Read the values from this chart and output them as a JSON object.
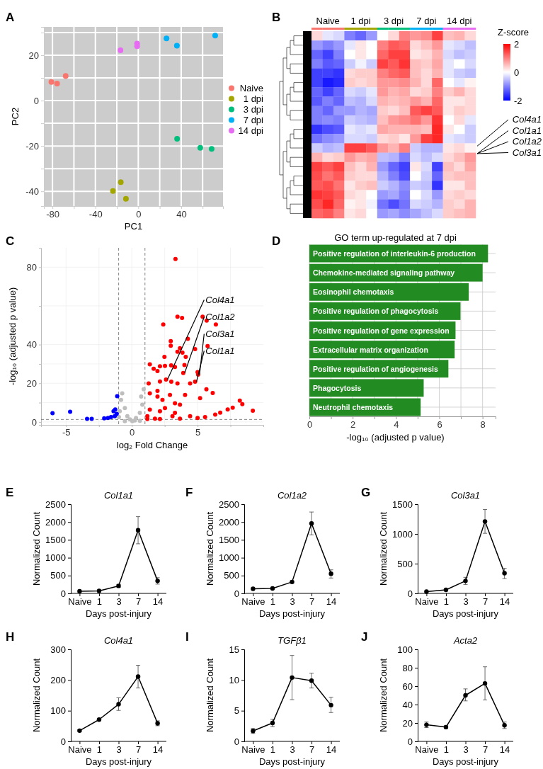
{
  "chart_data": [
    {
      "type": "scatter",
      "xlabel": "PC1",
      "ylabel": "PC2",
      "annotations": [
        "A"
      ],
      "xlim": [
        -88,
        79
      ],
      "ylim": [
        -46.5,
        32.5
      ],
      "xticks": [
        -80,
        {
          "value": -60,
          "label": null
        },
        -40,
        {
          "value": -20,
          "label": null
        },
        0,
        {
          "value": 20,
          "label": null
        },
        40,
        {
          "value": 60,
          "label": null
        }
      ],
      "yticks": [
        -40,
        {
          "value": -30,
          "label": null
        },
        -20,
        {
          "value": -10,
          "label": null
        },
        0,
        {
          "value": 10,
          "label": null
        },
        20,
        {
          "value": 30,
          "label": null
        }
      ],
      "grid": true,
      "legend": "right",
      "marker": "circle",
      "series": [
        {
          "name": "Naive",
          "color": "#f8766d",
          "x": [
            -81,
            -75.7,
            -67.7
          ],
          "values": [
            8.2,
            7.5,
            10.9
          ]
        },
        {
          "name": "1 dpi",
          "color": "#a3a500",
          "x": [
            -23.6,
            -16.3,
            -11.5
          ],
          "values": [
            -39.9,
            -36,
            -43.3
          ]
        },
        {
          "name": "3 dpi",
          "color": "#00bf7d",
          "x": [
            36.2,
            57.8,
            68.4
          ],
          "values": [
            -16.8,
            -20.8,
            -21.3
          ]
        },
        {
          "name": "7 dpi",
          "color": "#00b0f6",
          "x": [
            26.3,
            36,
            71.7
          ],
          "values": [
            27.4,
            24.2,
            28.7
          ]
        },
        {
          "name": "14 dpi",
          "color": "#e76bf3",
          "x": [
            -16.6,
            -1.1,
            -1.1
          ],
          "values": [
            22.2,
            25.2,
            24
          ]
        }
      ]
    },
    {
      "type": "heatmap",
      "annotations": [
        "B",
        "Col4a1",
        "Col1a1",
        "Col1a2",
        "Col3a1"
      ],
      "clabel": "Z-score",
      "clim": [
        -2,
        2
      ],
      "cticks": [
        -2,
        0,
        2
      ],
      "categories": [
        null,
        "Naive",
        null,
        null,
        "1 dpi",
        null,
        null,
        "3 dpi",
        null,
        null,
        "7 dpi",
        null,
        null,
        "14 dpi",
        null
      ],
      "y_categories": [
        null,
        null,
        null,
        null,
        null,
        null,
        null,
        null,
        null,
        null,
        null,
        null,
        null,
        null,
        null,
        null,
        null,
        null,
        null,
        null
      ],
      "cells": [
        [
          0.3,
          -0.2,
          -0.3,
          -1,
          -1.2,
          -0.8,
          0,
          0.3,
          1,
          0.8,
          0.9,
          1.5,
          0.5,
          0.6,
          0.3
        ],
        [
          -0.8,
          -1,
          -0.8,
          -0.2,
          0.2,
          0,
          1,
          1.3,
          1.2,
          0.3,
          0.5,
          0.8,
          -0.2,
          -0.3,
          -0.5
        ],
        [
          -1.2,
          -1.5,
          -1,
          0,
          0.2,
          0,
          1.2,
          1.5,
          1.5,
          0.2,
          0.3,
          0.6,
          -0.3,
          -0.5,
          -0.4
        ],
        [
          -1,
          -1.3,
          -1.2,
          -0.4,
          -0.1,
          -0.4,
          1.5,
          1.3,
          1.6,
          0.5,
          0.4,
          0.7,
          -0.2,
          0,
          -0.3
        ],
        [
          -1.5,
          -1.5,
          -1.6,
          0.3,
          0.4,
          0.4,
          1,
          1.2,
          1.3,
          0.5,
          0.3,
          0.6,
          -0.2,
          -0.4,
          -0.5
        ],
        [
          -1.5,
          -1.8,
          -1.7,
          0.4,
          0.3,
          0.4,
          0.8,
          0.8,
          0.9,
          0.6,
          0.3,
          1.2,
          0,
          -0.2,
          0.1
        ],
        [
          -1.2,
          -1.5,
          -1.2,
          -0.3,
          -0.4,
          -0.2,
          0.8,
          0.6,
          0.7,
          0.3,
          0.4,
          1,
          0.4,
          0.6,
          0.3
        ],
        [
          -1.3,
          -1,
          -1.2,
          -0.5,
          -0.6,
          -0.3,
          0.6,
          0.5,
          0.6,
          0.8,
          0.6,
          1.2,
          0.2,
          0.2,
          0.3
        ],
        [
          -1,
          -1.2,
          -0.8,
          -0.8,
          -0.6,
          -0.7,
          0.4,
          0.3,
          0.5,
          1.3,
          1.5,
          1.3,
          0.2,
          0.4,
          0.3
        ],
        [
          -1,
          -0.9,
          -1,
          -0.4,
          -0.5,
          -0.6,
          0.5,
          0.8,
          0.9,
          1.1,
          0.8,
          1.6,
          0,
          0.3,
          -0.2
        ],
        [
          -1.6,
          -1.4,
          -1.3,
          -0.2,
          -0.3,
          -0.2,
          0.7,
          0.6,
          0.6,
          0.6,
          0.5,
          1.7,
          0.2,
          0,
          -0.4
        ],
        [
          -1.1,
          -0.9,
          -0.8,
          -0.3,
          -0.3,
          -0.4,
          0.3,
          0.4,
          0.2,
          0.8,
          1.5,
          1.7,
          -0.2,
          -0.3,
          -0.4
        ],
        [
          -0.4,
          -0.6,
          -0.5,
          1.5,
          1.5,
          1.3,
          0.8,
          0.6,
          1,
          -0.4,
          -0.6,
          -0.6,
          0.2,
          0.3,
          0.1
        ],
        [
          0.6,
          0.3,
          0.4,
          0.8,
          0.6,
          0.7,
          -0.5,
          -0.6,
          -1,
          -0.3,
          -0.5,
          -0.3,
          0.3,
          0.5,
          0.8
        ],
        [
          1.5,
          1.3,
          1.5,
          0.5,
          0.3,
          0.6,
          -0.8,
          -1.2,
          -1.5,
          0.2,
          -0.3,
          -1.5,
          0.5,
          0.3,
          0.7
        ],
        [
          1.4,
          1.1,
          1.3,
          0.4,
          0.3,
          0.3,
          -0.6,
          -1,
          -1.4,
          0,
          -0.4,
          -1.2,
          0.4,
          0.5,
          0.5
        ],
        [
          1.3,
          1.4,
          1.1,
          0.2,
          0.4,
          0.5,
          -0.4,
          -0.6,
          -0.9,
          -0.4,
          -0.5,
          -1.6,
          0.2,
          0.2,
          0.5
        ],
        [
          1.6,
          1.5,
          1.3,
          0.3,
          0.2,
          0,
          -0.8,
          -0.7,
          -1,
          0,
          -0.3,
          -0.8,
          0.3,
          0.4,
          0.3
        ],
        [
          1.4,
          1.7,
          1.2,
          0.1,
          0.2,
          -0.1,
          -1.1,
          -1.4,
          -1.1,
          -0.3,
          -0.4,
          -0.6,
          0.4,
          0.3,
          0.6
        ],
        [
          1.2,
          1.3,
          1,
          0.2,
          0.3,
          0,
          -0.8,
          -0.7,
          -0.9,
          -0.7,
          -0.5,
          -0.3,
          0.4,
          0.5,
          0.6
        ]
      ]
    },
    {
      "type": "scatter",
      "xlabel": "log₂ Fold Change",
      "ylabel": "-log₁₀ (adjusted p value)",
      "xlim": [
        -6.9,
        10
      ],
      "ylim": [
        -1.5,
        90
      ],
      "annotations": [
        "C",
        {
          "text": "Col4a1",
          "x": 2.6,
          "y": 21.9
        },
        {
          "text": "Col1a2",
          "x": 3.91,
          "y": 25.3
        },
        {
          "text": "Col3a1",
          "x": 5.04,
          "y": 24.5
        },
        {
          "text": "Col1a1",
          "x": 4.81,
          "y": 20.8
        }
      ],
      "xticks": [
        -5,
        {
          "value": -2.5,
          "label": null
        },
        0,
        {
          "value": 2.5,
          "label": null
        },
        5,
        {
          "value": 7.5,
          "label": null
        }
      ],
      "yticks": [
        0,
        {
          "value": 10,
          "label": null
        },
        20,
        {
          "value": 30,
          "label": null
        },
        40,
        {
          "value": 60,
          "label": null
        },
        80
      ],
      "grid": true,
      "marker": "circle",
      "ref_lines": [
        {
          "axis": "x",
          "value": -1,
          "color": "#666666",
          "line_style": "dashed"
        },
        {
          "axis": "x",
          "value": 1,
          "color": "#666666",
          "line_style": "dashed"
        },
        {
          "axis": "y",
          "value": 1.3,
          "color": "#666666",
          "line_style": "dashed"
        }
      ],
      "series": [
        {
          "color": "#bebebe",
          "x": [
            -0.73,
            -0.82,
            -0.53,
            -0.34,
            -0.15,
            0.32,
            0.61,
            0.8,
            0.9,
            0.71,
            -0.92,
            0.23,
            0.04,
            -0.53,
            -0.98,
            0.61
          ],
          "values": [
            14.8,
            11.4,
            7.2,
            3,
            1.3,
            2.1,
            4.7,
            8.9,
            16.9,
            13.1,
            5.5,
            0.8,
            0.4,
            0.4,
            2.5,
            0.6
          ]
        },
        {
          "color": "#0000ff",
          "x": [
            -6.03,
            -4.69,
            -3.4,
            -3.05,
            -2.1,
            -1.81,
            -1.39,
            -1.26,
            -1.11,
            -1.3,
            -1.58,
            -1.15
          ],
          "values": [
            4.5,
            5.3,
            1.6,
            1.6,
            1.9,
            2.1,
            5.5,
            6.5,
            13.3,
            3,
            2.5,
            4.2
          ]
        },
        {
          "color": "#ff0000",
          "x": [
            3.32,
            3.47,
            3.82,
            5.38,
            5.69,
            6.39,
            2.39,
            2.96,
            2.96,
            4.26,
            5.76,
            4.81,
            3.66,
            3.47,
            3.85,
            2.48,
            4.1,
            1.37,
            2.14,
            2.52,
            2.99,
            3.28,
            4.0,
            5.0,
            1.95,
            1.66,
            2.6,
            3.91,
            5.04,
            4.81,
            2.14,
            3.0,
            3.47,
            4.43,
            5.67,
            6.15,
            1.28,
            1.95,
            2.9,
            4.05,
            5.19,
            2.33,
            3.66,
            8.21,
            8.4,
            9.2,
            7.67,
            7.29,
            6.72,
            5.57,
            4.43,
            3.28,
            2.14,
            1.37,
            1.18,
            1.76,
            2.52,
            3.28,
            1.95,
            1.37,
            1.18,
            2.14,
            3.66,
            5.0,
            6.34,
            3.09
          ],
          "values": [
            84.2,
            54.4,
            53.8,
            54.4,
            52.4,
            50.4,
            50.4,
            41.8,
            39.4,
            43,
            39.2,
            37.7,
            38.1,
            36.3,
            35.8,
            33.6,
            33.6,
            29.8,
            28.8,
            29,
            29.2,
            28.4,
            29.4,
            25.8,
            26.3,
            27.5,
            21.9,
            25.3,
            24.5,
            20.8,
            20.9,
            20.8,
            19.9,
            19.9,
            16.9,
            15,
            19.9,
            16.1,
            14,
            14,
            12.3,
            11.4,
            8.9,
            11,
            9.2,
            5.8,
            7.4,
            6.5,
            4.8,
            2.5,
            3,
            4.7,
            5.5,
            6.4,
            3,
            1.7,
            7.2,
            9.7,
            13.1,
            14.8,
            1.5,
            1.5,
            1.7,
            2.1,
            3.8,
            3
          ]
        }
      ]
    },
    {
      "type": "bar",
      "orientation": "horizontal",
      "title": "GO term up-regulated at 7 dpi",
      "xlabel": "-log₁₀ (adjusted p value)",
      "annotations": [
        "D"
      ],
      "color": "#228b22",
      "categories": [
        "Positive regulation of interleukin-6 production",
        "Chemokine-mediated signaling pathway",
        "Eosinophil chemotaxis",
        "Positive regulation of phagocytosis",
        "Positive regulation of gene expression",
        "Extracellular matrix organization",
        "Positive regulation of angiogenesis",
        "Phagocytosis",
        "Neutrophil chemotaxis"
      ],
      "values": [
        8.25,
        8.0,
        7.36,
        6.98,
        6.75,
        6.71,
        6.42,
        5.28,
        5.14
      ],
      "xlim": [
        0,
        8.6
      ],
      "xticks": [
        0,
        {
          "value": 1,
          "label": null
        },
        2,
        {
          "value": 3,
          "label": null
        },
        4,
        {
          "value": 5,
          "label": null
        },
        6,
        {
          "value": 7,
          "label": null
        },
        8
      ],
      "grid": true
    },
    {
      "type": "line",
      "title": "Col1a1",
      "annotations": [
        "E"
      ],
      "xlabel": "Days post-injury",
      "ylabel": "Normalized Count",
      "categories": [
        "Naive",
        "1",
        "3",
        "7",
        "14"
      ],
      "color": "#000000",
      "marker": "circle",
      "line_style": "solid",
      "values": [
        60,
        70,
        210,
        1770,
        350
      ],
      "errors": [
        null,
        null,
        [
          170,
          250
        ],
        [
          1390,
          2150
        ],
        [
          260,
          440
        ]
      ],
      "ylim": [
        0,
        2500
      ],
      "yticks": [
        0,
        500,
        1000,
        1500,
        2000,
        2500
      ]
    },
    {
      "type": "line",
      "title": "Col1a2",
      "annotations": [
        "F"
      ],
      "xlabel": "Days post-injury",
      "ylabel": "Normalized Count",
      "categories": [
        "Naive",
        "1",
        "3",
        "7",
        "14"
      ],
      "color": "#000000",
      "marker": "circle",
      "line_style": "solid",
      "values": [
        130,
        140,
        320,
        1960,
        550
      ],
      "errors": [
        null,
        null,
        [
          290,
          350
        ],
        [
          1640,
          2280
        ],
        [
          430,
          660
        ]
      ],
      "ylim": [
        0,
        2500
      ],
      "yticks": [
        0,
        500,
        1000,
        1500,
        2000,
        2500
      ]
    },
    {
      "type": "line",
      "title": "Col3a1",
      "annotations": [
        "G"
      ],
      "xlabel": "Days post-injury",
      "ylabel": "Normalized Count",
      "categories": [
        "Naive",
        "1",
        "3",
        "7",
        "14"
      ],
      "color": "#000000",
      "marker": "circle",
      "line_style": "solid",
      "values": [
        30,
        60,
        210,
        1210,
        340
      ],
      "errors": [
        null,
        null,
        [
          150,
          270
        ],
        [
          1010,
          1410
        ],
        [
          250,
          420
        ]
      ],
      "ylim": [
        0,
        1500
      ],
      "yticks": [
        0,
        500,
        1000,
        1500
      ]
    },
    {
      "type": "line",
      "title": "Col4a1",
      "annotations": [
        "H"
      ],
      "xlabel": "Days post-injury",
      "ylabel": "Normalized Count",
      "categories": [
        "Naive",
        "1",
        "3",
        "7",
        "14"
      ],
      "color": "#000000",
      "marker": "circle",
      "line_style": "solid",
      "values": [
        35,
        71,
        121,
        211,
        59
      ],
      "errors": [
        [
          32,
          38
        ],
        [
          68,
          74
        ],
        [
          101,
          142
        ],
        [
          174,
          248
        ],
        [
          51,
          67
        ]
      ],
      "ylim": [
        0,
        300
      ],
      "yticks": [
        0,
        100,
        200,
        300
      ]
    },
    {
      "type": "line",
      "title": "TGFβ1",
      "annotations": [
        "I"
      ],
      "xlabel": "Days post-injury",
      "ylabel": "Normalized Count",
      "categories": [
        "Naive",
        "1",
        "3",
        "7",
        "14"
      ],
      "color": "#000000",
      "marker": "circle",
      "line_style": "solid",
      "values": [
        1.7,
        3.0,
        10.4,
        9.9,
        5.9
      ],
      "errors": [
        [
          1.3,
          2.1
        ],
        [
          2.4,
          3.6
        ],
        [
          6.8,
          14.0
        ],
        [
          8.7,
          11.1
        ],
        [
          4.7,
          7.2
        ]
      ],
      "ylim": [
        0,
        15
      ],
      "yticks": [
        0,
        5,
        10,
        15
      ]
    },
    {
      "type": "line",
      "title": "Acta2",
      "annotations": [
        "J"
      ],
      "xlabel": "Days post-injury",
      "ylabel": "Normalized Count",
      "categories": [
        "Naive",
        "1",
        "3",
        "7",
        "14"
      ],
      "color": "#000000",
      "marker": "circle",
      "line_style": "solid",
      "values": [
        18,
        15.5,
        50,
        63,
        17.5
      ],
      "errors": [
        [
          15,
          21
        ],
        [
          14,
          17
        ],
        [
          44,
          57
        ],
        [
          45,
          81
        ],
        [
          14,
          21
        ]
      ],
      "ylim": [
        0,
        100
      ],
      "yticks": [
        0,
        20,
        40,
        60,
        80,
        100
      ]
    }
  ]
}
